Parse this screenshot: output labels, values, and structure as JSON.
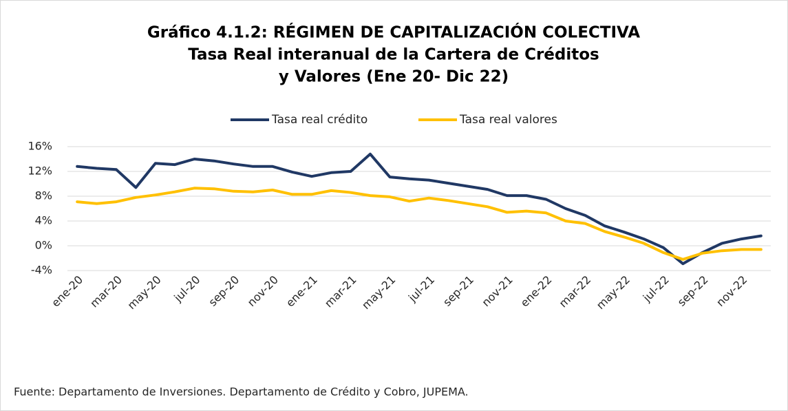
{
  "chart_data": {
    "type": "line",
    "title": [
      "Gráfico 4.1.2: RÉGIMEN DE CAPITALIZACIÓN COLECTIVA",
      "Tasa Real interanual de la Cartera de Créditos",
      "y Valores (Ene 20- Dic 22)"
    ],
    "categories": [
      "ene-20",
      null,
      "mar-20",
      null,
      "may-20",
      null,
      "jul-20",
      null,
      "sep-20",
      null,
      "nov-20",
      null,
      "ene-21",
      null,
      "mar-21",
      null,
      "may-21",
      null,
      "jul-21",
      null,
      "sep-21",
      null,
      "nov-21",
      null,
      "ene-22",
      null,
      "mar-22",
      null,
      "may-22",
      null,
      "jul-22",
      null,
      "sep-22",
      null,
      "nov-22",
      null
    ],
    "series": [
      {
        "name": "Tasa real crédito",
        "color": "#203864",
        "values": [
          12.8,
          12.5,
          12.3,
          9.4,
          13.3,
          13.1,
          14.0,
          13.7,
          13.2,
          12.8,
          12.8,
          11.9,
          11.2,
          11.8,
          12.0,
          14.8,
          11.1,
          10.8,
          10.6,
          10.1,
          9.6,
          9.1,
          8.1,
          8.1,
          7.5,
          6.0,
          4.9,
          3.2,
          2.2,
          1.1,
          -0.3,
          -2.9,
          -1.1,
          0.4,
          1.1,
          1.6
        ]
      },
      {
        "name": "Tasa real valores",
        "color": "#ffc000",
        "values": [
          7.1,
          6.8,
          7.1,
          7.8,
          8.2,
          8.7,
          9.3,
          9.2,
          8.8,
          8.7,
          9.0,
          8.3,
          8.3,
          8.9,
          8.6,
          8.1,
          7.9,
          7.2,
          7.7,
          7.3,
          6.8,
          6.3,
          5.4,
          5.6,
          5.3,
          4.0,
          3.6,
          2.3,
          1.4,
          0.4,
          -1.1,
          -2.2,
          -1.2,
          -0.8,
          -0.6,
          -0.6
        ]
      }
    ],
    "ylim": [
      -4,
      16
    ],
    "yticks": [
      {
        "value": -4,
        "label": "-4%"
      },
      {
        "value": 0,
        "label": "0%"
      },
      {
        "value": 4,
        "label": "4%"
      },
      {
        "value": 8,
        "label": "8%"
      },
      {
        "value": 12,
        "label": "12%"
      },
      {
        "value": 16,
        "label": "16%"
      }
    ],
    "grid": true,
    "legend": "top",
    "source": "Fuente: Departamento de Inversiones. Departamento de Crédito y Cobro, JUPEMA."
  }
}
